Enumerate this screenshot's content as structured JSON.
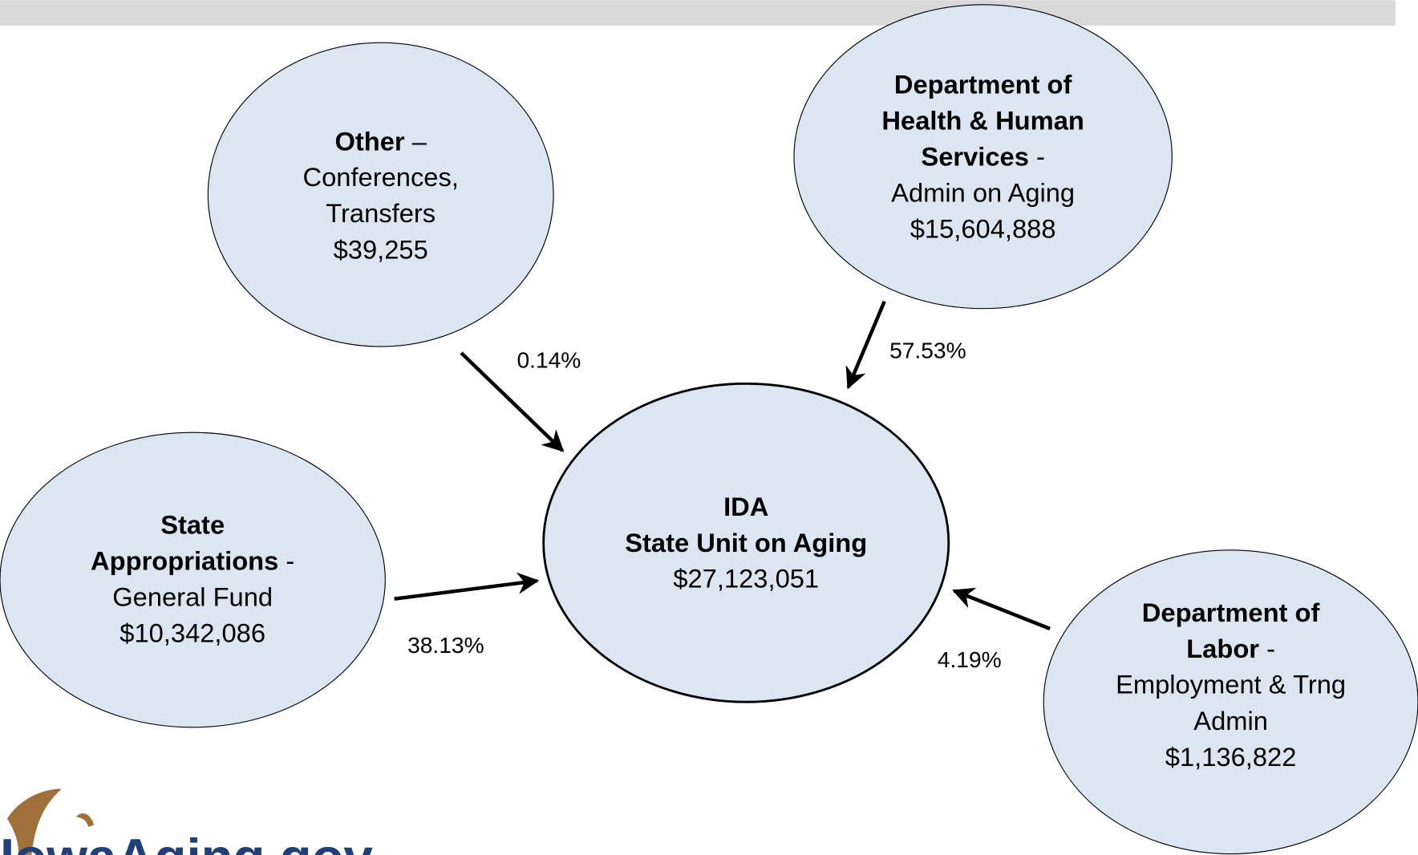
{
  "nodes": [
    {
      "title": [
        "Other"
      ],
      "separator": " –",
      "lines": [
        "Conferences,",
        "Transfers"
      ],
      "amount": "$39,255"
    },
    {
      "title": [
        "Department of",
        "Health & Human",
        "Services"
      ],
      "separator": " -",
      "lines": [
        "Admin on Aging"
      ],
      "amount": "$15,604,888"
    },
    {
      "title": [
        "State",
        "Appropriations"
      ],
      "separator": " -",
      "lines": [
        "General Fund"
      ],
      "amount": "$10,342,086"
    },
    {
      "title": [
        "IDA",
        "State Unit on Aging"
      ],
      "lines": [],
      "amount": "$27,123,051"
    },
    {
      "title": [
        "Department of",
        "Labor"
      ],
      "separator": " -",
      "lines": [
        "Employment & Trng",
        "Admin"
      ],
      "amount": "$1,136,822"
    }
  ],
  "edges": [
    {
      "label": "0.14%"
    },
    {
      "label": "57.53%"
    },
    {
      "label": "38.13%"
    },
    {
      "label": "4.19%"
    }
  ],
  "logo": "IowaAging.gov"
}
